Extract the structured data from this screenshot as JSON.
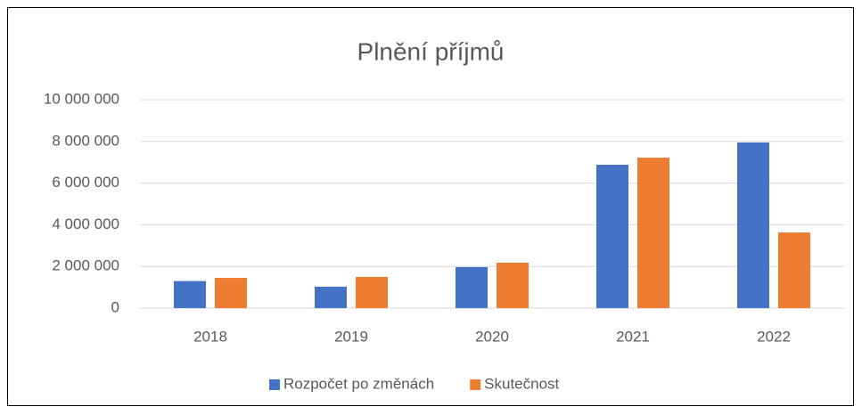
{
  "chart_data": {
    "type": "bar",
    "title": "Plnění příjmů",
    "categories": [
      "2018",
      "2019",
      "2020",
      "2021",
      "2022"
    ],
    "series": [
      {
        "name": "Rozpočet po změnách",
        "color": "#4472c4",
        "values": [
          1300000,
          1030000,
          1970000,
          6880000,
          7950000
        ]
      },
      {
        "name": "Skutečnost",
        "color": "#ed7d31",
        "values": [
          1450000,
          1500000,
          2180000,
          7220000,
          3630000
        ]
      }
    ],
    "ylim": [
      0,
      10000000
    ],
    "yticks": [
      0,
      {
        "value": 2000000,
        "label": "2 000 000"
      },
      {
        "value": 4000000,
        "label": "4 000 000"
      },
      {
        "value": 6000000,
        "label": "6 000 000"
      },
      {
        "value": 8000000,
        "label": "8 000 000"
      },
      {
        "value": 10000000,
        "label": "10 000 000"
      }
    ],
    "grid": true,
    "legend": "bottom"
  }
}
